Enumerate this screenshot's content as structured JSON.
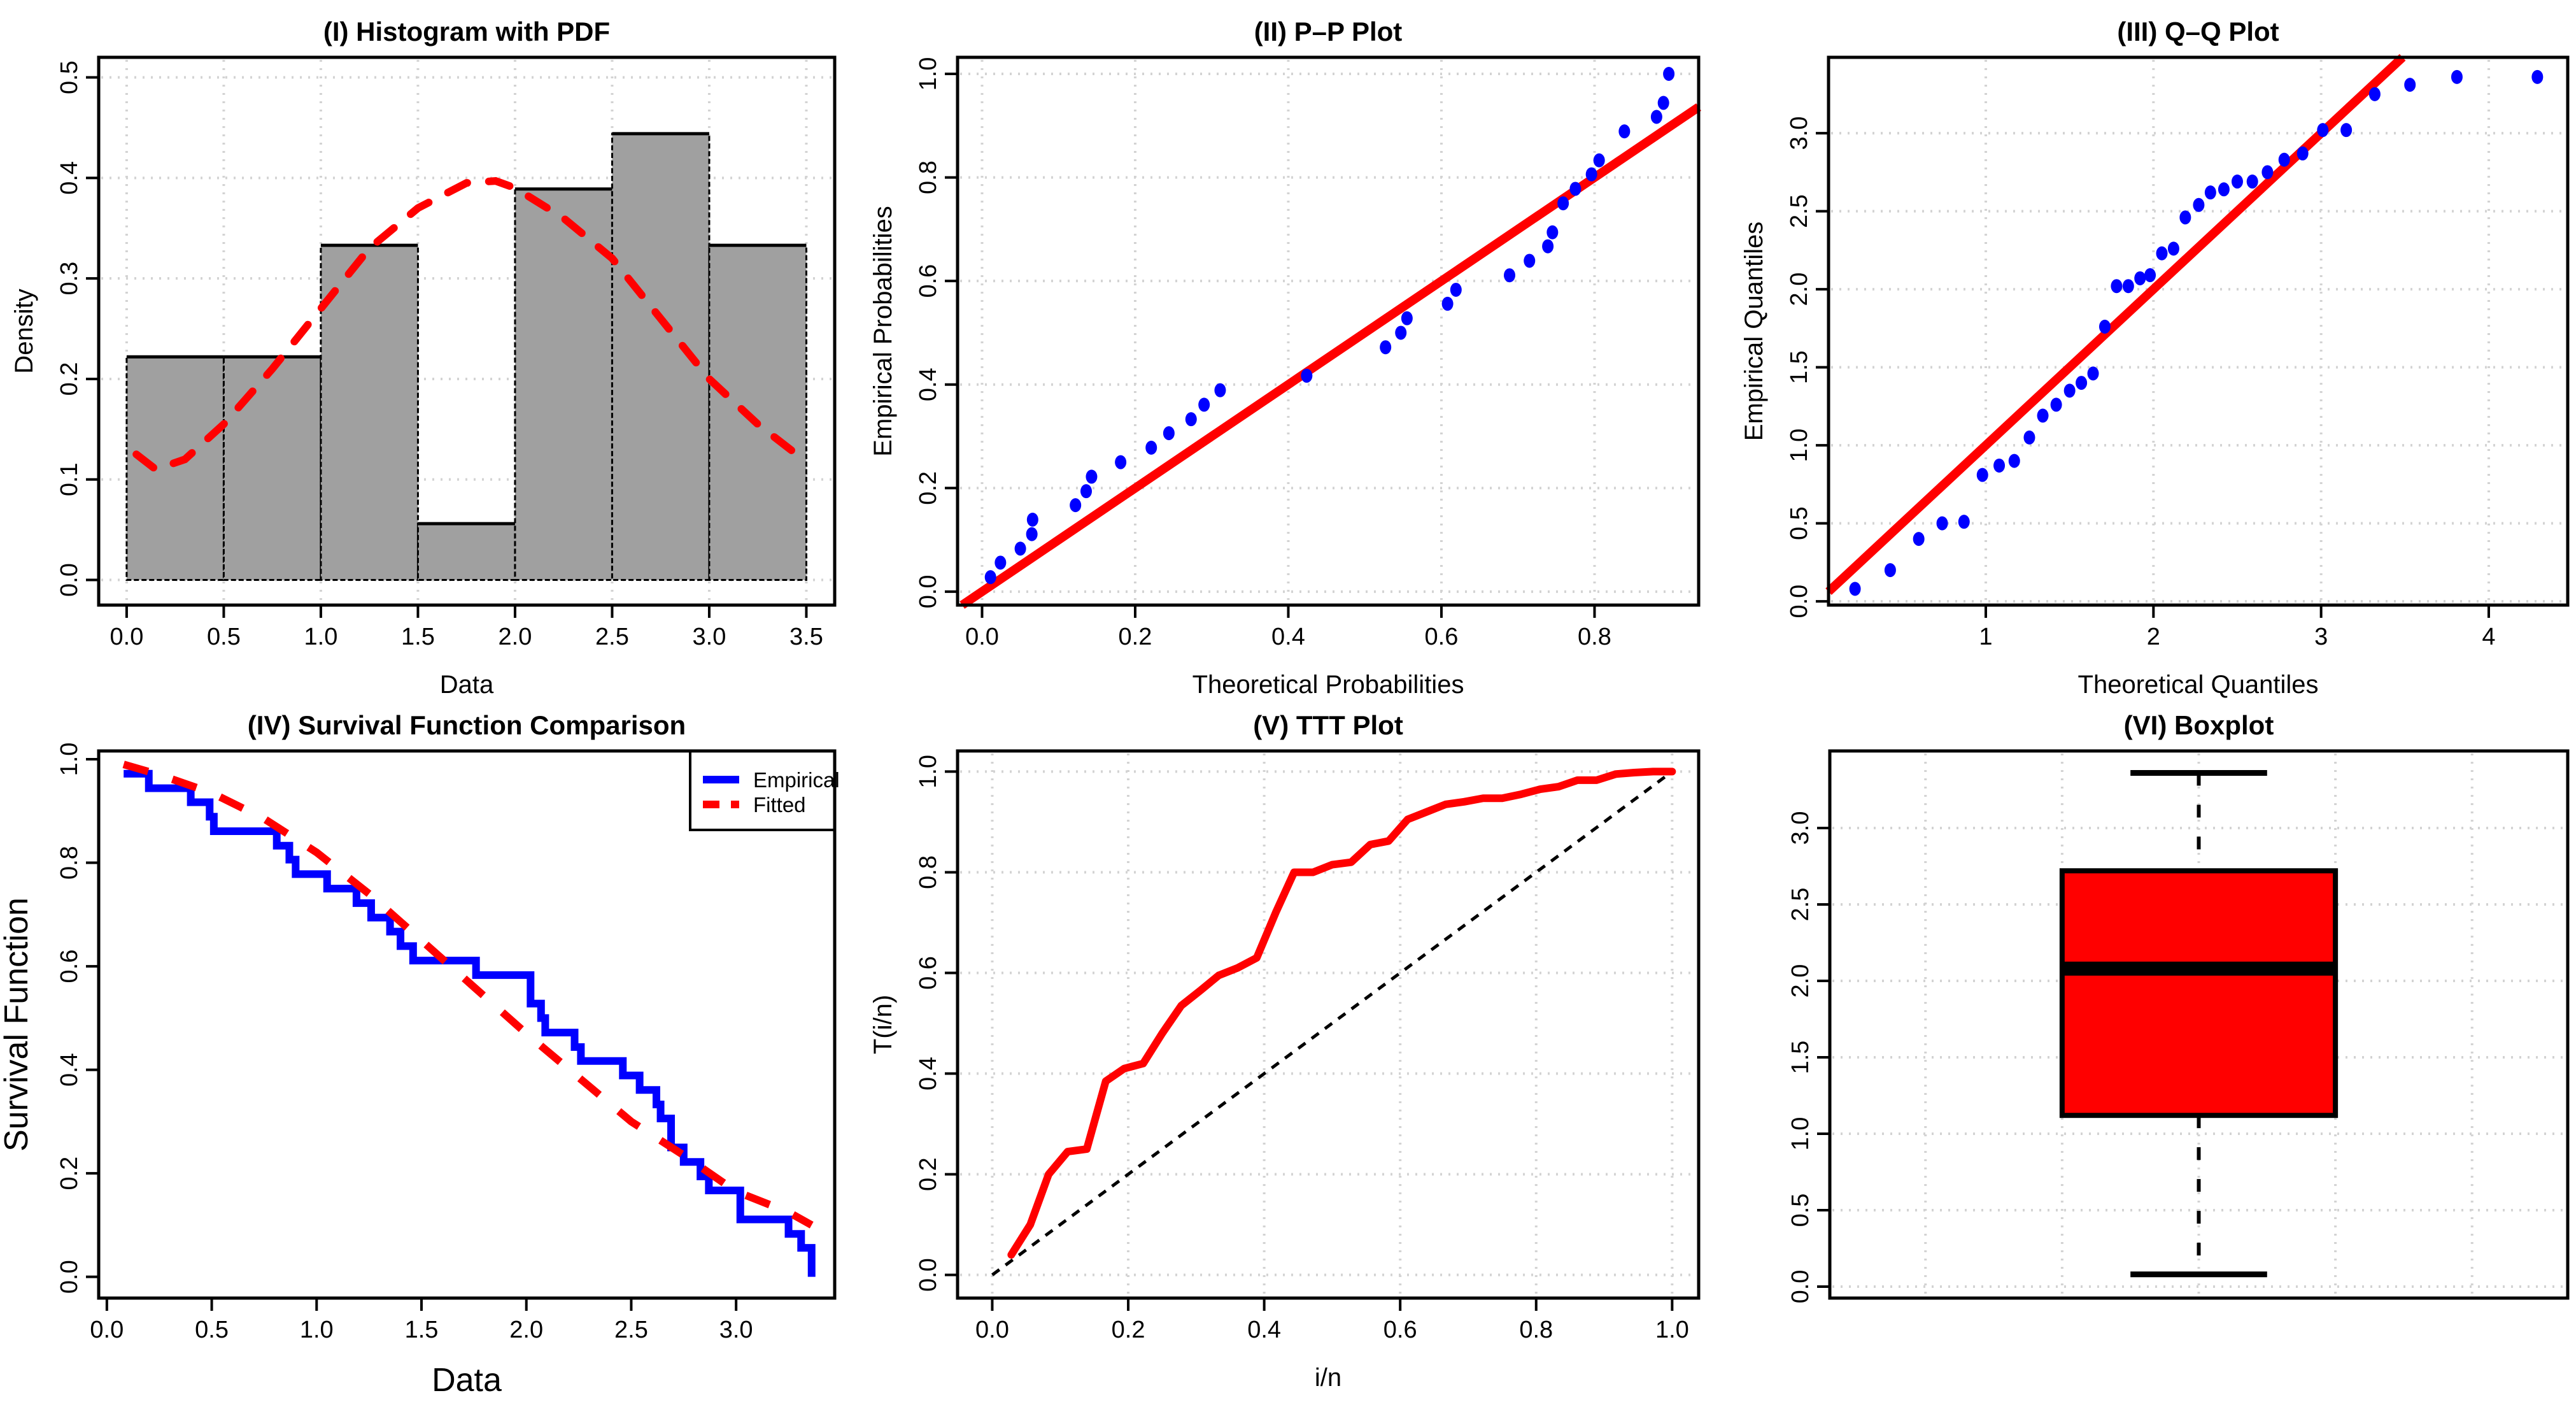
{
  "colors": {
    "red": "#FF0000",
    "blue": "#0000FF",
    "bar_fill": "#A0A0A0",
    "grid": "#D3D3D3",
    "ink": "#000000"
  },
  "chart_data": [
    {
      "id": "hist",
      "type": "bar",
      "title": "(I) Histogram with PDF",
      "xlabel": "Data",
      "ylabel": "Density",
      "xlim": [
        -0.144,
        3.646
      ],
      "ylim": [
        -0.025,
        0.52
      ],
      "xticks": [
        0,
        0.5,
        1,
        1.5,
        2,
        2.5,
        3,
        3.5
      ],
      "xtick_labels": [
        "0.0",
        "0.5",
        "1.0",
        "1.5",
        "2.0",
        "2.5",
        "3.0",
        "3.5"
      ],
      "yticks": [
        0,
        0.1,
        0.2,
        0.3,
        0.4,
        0.5
      ],
      "ytick_labels": [
        "0.0",
        "0.1",
        "0.2",
        "0.3",
        "0.4",
        "0.5"
      ],
      "grid": true,
      "bins": [
        [
          0,
          0.5
        ],
        [
          0.5,
          1
        ],
        [
          1,
          1.5
        ],
        [
          1.5,
          2
        ],
        [
          2,
          2.5
        ],
        [
          2.5,
          3
        ],
        [
          3,
          3.5
        ]
      ],
      "values": [
        0.222,
        0.222,
        0.333,
        0.056,
        0.389,
        0.444,
        0.333
      ],
      "pdf_curve": {
        "x": [
          0.05,
          0.15,
          0.3,
          0.5,
          0.75,
          1.0,
          1.25,
          1.5,
          1.75,
          1.9,
          2.0,
          2.25,
          2.5,
          2.75,
          3.0,
          3.25,
          3.45
        ],
        "y": [
          0.125,
          0.11,
          0.12,
          0.155,
          0.21,
          0.27,
          0.33,
          0.37,
          0.395,
          0.397,
          0.39,
          0.36,
          0.32,
          0.26,
          0.2,
          0.155,
          0.125
        ]
      }
    },
    {
      "id": "pp",
      "type": "scatter",
      "title": "(II) P–P Plot",
      "xlabel": "Theoretical Probabilities",
      "ylabel": "Empirical Probabilities",
      "xlim": [
        -0.032,
        0.936
      ],
      "ylim": [
        -0.026,
        1.032
      ],
      "xticks": [
        0,
        0.2,
        0.4,
        0.6,
        0.8
      ],
      "xtick_labels": [
        "0.0",
        "0.2",
        "0.4",
        "0.6",
        "0.8"
      ],
      "yticks": [
        0,
        0.2,
        0.4,
        0.6,
        0.8,
        1.0
      ],
      "ytick_labels": [
        "0.0",
        "0.2",
        "0.4",
        "0.6",
        "0.8",
        "1.0"
      ],
      "grid": true,
      "x": [
        0.011,
        0.024,
        0.05,
        0.065,
        0.066,
        0.122,
        0.136,
        0.143,
        0.181,
        0.221,
        0.244,
        0.273,
        0.29,
        0.311,
        0.424,
        0.527,
        0.547,
        0.555,
        0.608,
        0.619,
        0.689,
        0.715,
        0.739,
        0.745,
        0.759,
        0.775,
        0.796,
        0.806,
        0.839,
        0.881,
        0.89,
        0.897
      ],
      "y": [
        0.028,
        0.056,
        0.083,
        0.111,
        0.139,
        0.167,
        0.194,
        0.222,
        0.25,
        0.278,
        0.306,
        0.333,
        0.361,
        0.389,
        0.417,
        0.472,
        0.5,
        0.528,
        0.556,
        0.583,
        0.611,
        0.639,
        0.667,
        0.694,
        0.75,
        0.778,
        0.806,
        0.833,
        0.889,
        0.917,
        0.944,
        1.0
      ],
      "reference_line": {
        "slope": 1,
        "intercept": 0
      }
    },
    {
      "id": "qq",
      "type": "scatter",
      "title": "(III) Q–Q Plot",
      "xlabel": "Theoretical Quantiles",
      "ylabel": "Empirical Quantiles",
      "xlim": [
        0.062,
        4.471
      ],
      "ylim": [
        -0.024,
        3.486
      ],
      "xticks": [
        1,
        2,
        3,
        4
      ],
      "xtick_labels": [
        "1",
        "2",
        "3",
        "4"
      ],
      "yticks": [
        0,
        0.5,
        1,
        1.5,
        2,
        2.5,
        3
      ],
      "ytick_labels": [
        "0.0",
        "0.5",
        "1.0",
        "1.5",
        "2.0",
        "2.5",
        "3.0"
      ],
      "grid": true,
      "x": [
        0.22,
        0.43,
        0.6,
        0.74,
        0.87,
        0.98,
        1.08,
        1.17,
        1.26,
        1.34,
        1.42,
        1.5,
        1.57,
        1.64,
        1.71,
        1.78,
        1.85,
        1.92,
        1.98,
        2.05,
        2.12,
        2.19,
        2.27,
        2.34,
        2.42,
        2.5,
        2.59,
        2.68,
        2.78,
        2.89,
        3.01,
        3.15,
        3.32,
        3.53,
        3.81,
        4.29
      ],
      "y": [
        0.08,
        0.2,
        0.4,
        0.5,
        0.51,
        0.81,
        0.87,
        0.9,
        1.05,
        1.19,
        1.26,
        1.35,
        1.4,
        1.46,
        1.76,
        2.02,
        2.02,
        2.07,
        2.09,
        2.23,
        2.26,
        2.46,
        2.54,
        2.62,
        2.64,
        2.69,
        2.69,
        2.75,
        2.83,
        2.87,
        3.02,
        3.02,
        3.25,
        3.31,
        3.36,
        3.36
      ],
      "reference_line": {
        "slope": 1,
        "intercept": 0
      }
    },
    {
      "id": "survival",
      "type": "line",
      "title": "(IV) Survival Function Comparison",
      "xlabel": "Data",
      "ylabel": "Survival Function",
      "xlim": [
        -0.039,
        3.47
      ],
      "ylim": [
        -0.041,
        1.016
      ],
      "xticks": [
        0,
        0.5,
        1,
        1.5,
        2,
        2.5,
        3
      ],
      "xtick_labels": [
        "0.0",
        "0.5",
        "1.0",
        "1.5",
        "2.0",
        "2.5",
        "3.0"
      ],
      "yticks": [
        0,
        0.2,
        0.4,
        0.6,
        0.8,
        1.0
      ],
      "ytick_labels": [
        "0.0",
        "0.2",
        "0.4",
        "0.6",
        "0.8",
        "1.0"
      ],
      "grid": false,
      "legend": {
        "position": "top-right",
        "entries": [
          "Empirical",
          "Fitted"
        ]
      },
      "series": [
        {
          "name": "Empirical",
          "style": "step",
          "start": [
            0.08,
            0.972
          ],
          "x": [
            0.2,
            0.4,
            0.49,
            0.51,
            0.81,
            0.87,
            0.9,
            1.05,
            1.19,
            1.26,
            1.35,
            1.4,
            1.46,
            1.76,
            2.02,
            2.07,
            2.09,
            2.23,
            2.26,
            2.46,
            2.54,
            2.62,
            2.64,
            2.69,
            2.75,
            2.83,
            2.87,
            3.02,
            3.25,
            3.31,
            3.36
          ],
          "y": [
            0.944,
            0.917,
            0.889,
            0.861,
            0.833,
            0.806,
            0.778,
            0.75,
            0.722,
            0.694,
            0.667,
            0.639,
            0.611,
            0.583,
            0.528,
            0.5,
            0.472,
            0.444,
            0.417,
            0.389,
            0.361,
            0.333,
            0.306,
            0.25,
            0.222,
            0.194,
            0.167,
            0.111,
            0.083,
            0.056,
            0.0
          ]
        },
        {
          "name": "Fitted",
          "style": "dashed",
          "x": [
            0.08,
            0.25,
            0.5,
            0.75,
            1.0,
            1.25,
            1.5,
            1.75,
            2.0,
            2.25,
            2.5,
            2.75,
            3.0,
            3.25,
            3.36
          ],
          "y": [
            0.99,
            0.97,
            0.935,
            0.885,
            0.82,
            0.74,
            0.65,
            0.56,
            0.47,
            0.385,
            0.3,
            0.235,
            0.165,
            0.125,
            0.1
          ]
        }
      ]
    },
    {
      "id": "ttt",
      "type": "line",
      "title": "(V) TTT Plot",
      "xlabel": "i/n",
      "ylabel": "T(i/n)",
      "xlim": [
        -0.051,
        1.039
      ],
      "ylim": [
        -0.046,
        1.041
      ],
      "xticks": [
        0,
        0.2,
        0.4,
        0.6,
        0.8,
        1.0
      ],
      "xtick_labels": [
        "0.0",
        "0.2",
        "0.4",
        "0.6",
        "0.8",
        "1.0"
      ],
      "yticks": [
        0,
        0.2,
        0.4,
        0.6,
        0.8,
        1.0
      ],
      "ytick_labels": [
        "0.0",
        "0.2",
        "0.4",
        "0.6",
        "0.8",
        "1.0"
      ],
      "grid": true,
      "x": [
        0.028,
        0.056,
        0.083,
        0.111,
        0.139,
        0.167,
        0.194,
        0.222,
        0.25,
        0.278,
        0.306,
        0.333,
        0.361,
        0.389,
        0.417,
        0.444,
        0.472,
        0.5,
        0.528,
        0.556,
        0.583,
        0.611,
        0.639,
        0.667,
        0.694,
        0.722,
        0.75,
        0.778,
        0.806,
        0.833,
        0.861,
        0.889,
        0.917,
        0.944,
        0.972,
        1.0
      ],
      "y": [
        0.04,
        0.1,
        0.2,
        0.245,
        0.25,
        0.385,
        0.41,
        0.42,
        0.48,
        0.535,
        0.565,
        0.595,
        0.61,
        0.63,
        0.72,
        0.8,
        0.8,
        0.815,
        0.82,
        0.855,
        0.862,
        0.905,
        0.92,
        0.935,
        0.94,
        0.947,
        0.947,
        0.955,
        0.965,
        0.97,
        0.983,
        0.983,
        0.995,
        0.998,
        1.0,
        1.0
      ],
      "reference_line": {
        "slope": 1,
        "intercept": 0,
        "range": [
          0,
          1
        ]
      }
    },
    {
      "id": "box",
      "type": "box",
      "title": "(VI) Boxplot",
      "xlabel": "",
      "ylabel": "",
      "xlim": [
        0.46,
        1.54
      ],
      "ylim": [
        -0.075,
        3.504
      ],
      "xgrid": [
        0.6,
        0.8,
        1.0,
        1.2,
        1.4
      ],
      "yticks": [
        0,
        0.5,
        1,
        1.5,
        2,
        2.5,
        3
      ],
      "ytick_labels": [
        "0.0",
        "0.5",
        "1.0",
        "1.5",
        "2.0",
        "2.5",
        "3.0"
      ],
      "grid": true,
      "stats": {
        "min": 0.08,
        "q1": 1.12,
        "median": 2.08,
        "q3": 2.72,
        "max": 3.36
      }
    }
  ]
}
